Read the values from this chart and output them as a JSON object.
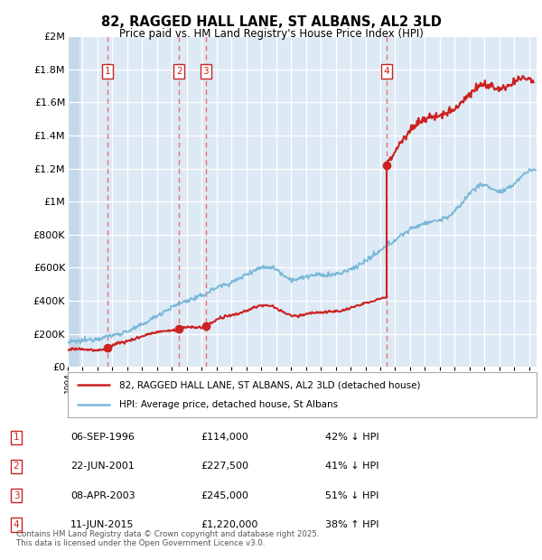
{
  "title": "82, RAGGED HALL LANE, ST ALBANS, AL2 3LD",
  "subtitle": "Price paid vs. HM Land Registry's House Price Index (HPI)",
  "footer": "Contains HM Land Registry data © Crown copyright and database right 2025.\nThis data is licensed under the Open Government Licence v3.0.",
  "legend_line1": "82, RAGGED HALL LANE, ST ALBANS, AL2 3LD (detached house)",
  "legend_line2": "HPI: Average price, detached house, St Albans",
  "transactions": [
    {
      "num": 1,
      "date": "06-SEP-1996",
      "price": 114000,
      "pct": "42%",
      "dir": "↓",
      "year": 1996.68
    },
    {
      "num": 2,
      "date": "22-JUN-2001",
      "price": 227500,
      "pct": "41%",
      "dir": "↓",
      "year": 2001.47
    },
    {
      "num": 3,
      "date": "08-APR-2003",
      "price": 245000,
      "pct": "51%",
      "dir": "↓",
      "year": 2003.27
    },
    {
      "num": 4,
      "date": "11-JUN-2015",
      "price": 1220000,
      "pct": "38%",
      "dir": "↑",
      "year": 2015.44
    }
  ],
  "hpi_color": "#7ab8d9",
  "price_color": "#cc2222",
  "dashed_color": "#e87070",
  "background_plot": "#ddeaf5",
  "background_hatch": "#c5d8ea",
  "ylim": [
    0,
    2000000
  ],
  "xlim_start": 1994,
  "xlim_end": 2025.5,
  "yticks": [
    0,
    200000,
    400000,
    600000,
    800000,
    1000000,
    1200000,
    1400000,
    1600000,
    1800000,
    2000000
  ],
  "ytick_labels": [
    "£0",
    "£200K",
    "£400K",
    "£600K",
    "£800K",
    "£1M",
    "£1.2M",
    "£1.4M",
    "£1.6M",
    "£1.8M",
    "£2M"
  ],
  "hpi_control_years": [
    1994,
    1995,
    1996,
    1997,
    1998,
    1999,
    2000,
    2001,
    2002,
    2003,
    2004,
    2005,
    2006,
    2007,
    2008,
    2009,
    2010,
    2011,
    2012,
    2013,
    2014,
    2015,
    2016,
    2017,
    2018,
    2019,
    2020,
    2021,
    2022,
    2023,
    2024,
    2025.5
  ],
  "hpi_control_vals": [
    148000,
    158000,
    172000,
    190000,
    215000,
    255000,
    310000,
    360000,
    400000,
    430000,
    480000,
    510000,
    560000,
    600000,
    590000,
    530000,
    545000,
    555000,
    560000,
    590000,
    640000,
    700000,
    770000,
    830000,
    870000,
    890000,
    940000,
    1050000,
    1100000,
    1060000,
    1110000,
    1190000
  ],
  "price_control_years": [
    1994,
    1995,
    1996.68,
    1997,
    1998,
    1999,
    2000,
    2001.47,
    2002,
    2003.27,
    2004,
    2005,
    2006,
    2007,
    2008,
    2009,
    2010,
    2011,
    2012,
    2013,
    2014,
    2015.44
  ],
  "price_control_vals": [
    100000,
    107000,
    114000,
    130000,
    155000,
    185000,
    210000,
    227500,
    240000,
    245000,
    285000,
    310000,
    340000,
    370000,
    355000,
    310000,
    320000,
    330000,
    335000,
    355000,
    385000,
    420000
  ],
  "price_after_years": [
    2015.44,
    2016,
    2017,
    2018,
    2019,
    2020,
    2021,
    2022,
    2023,
    2024,
    2025.3
  ],
  "price_after_vals": [
    1220000,
    1310000,
    1430000,
    1500000,
    1520000,
    1570000,
    1650000,
    1710000,
    1680000,
    1720000,
    1730000
  ]
}
